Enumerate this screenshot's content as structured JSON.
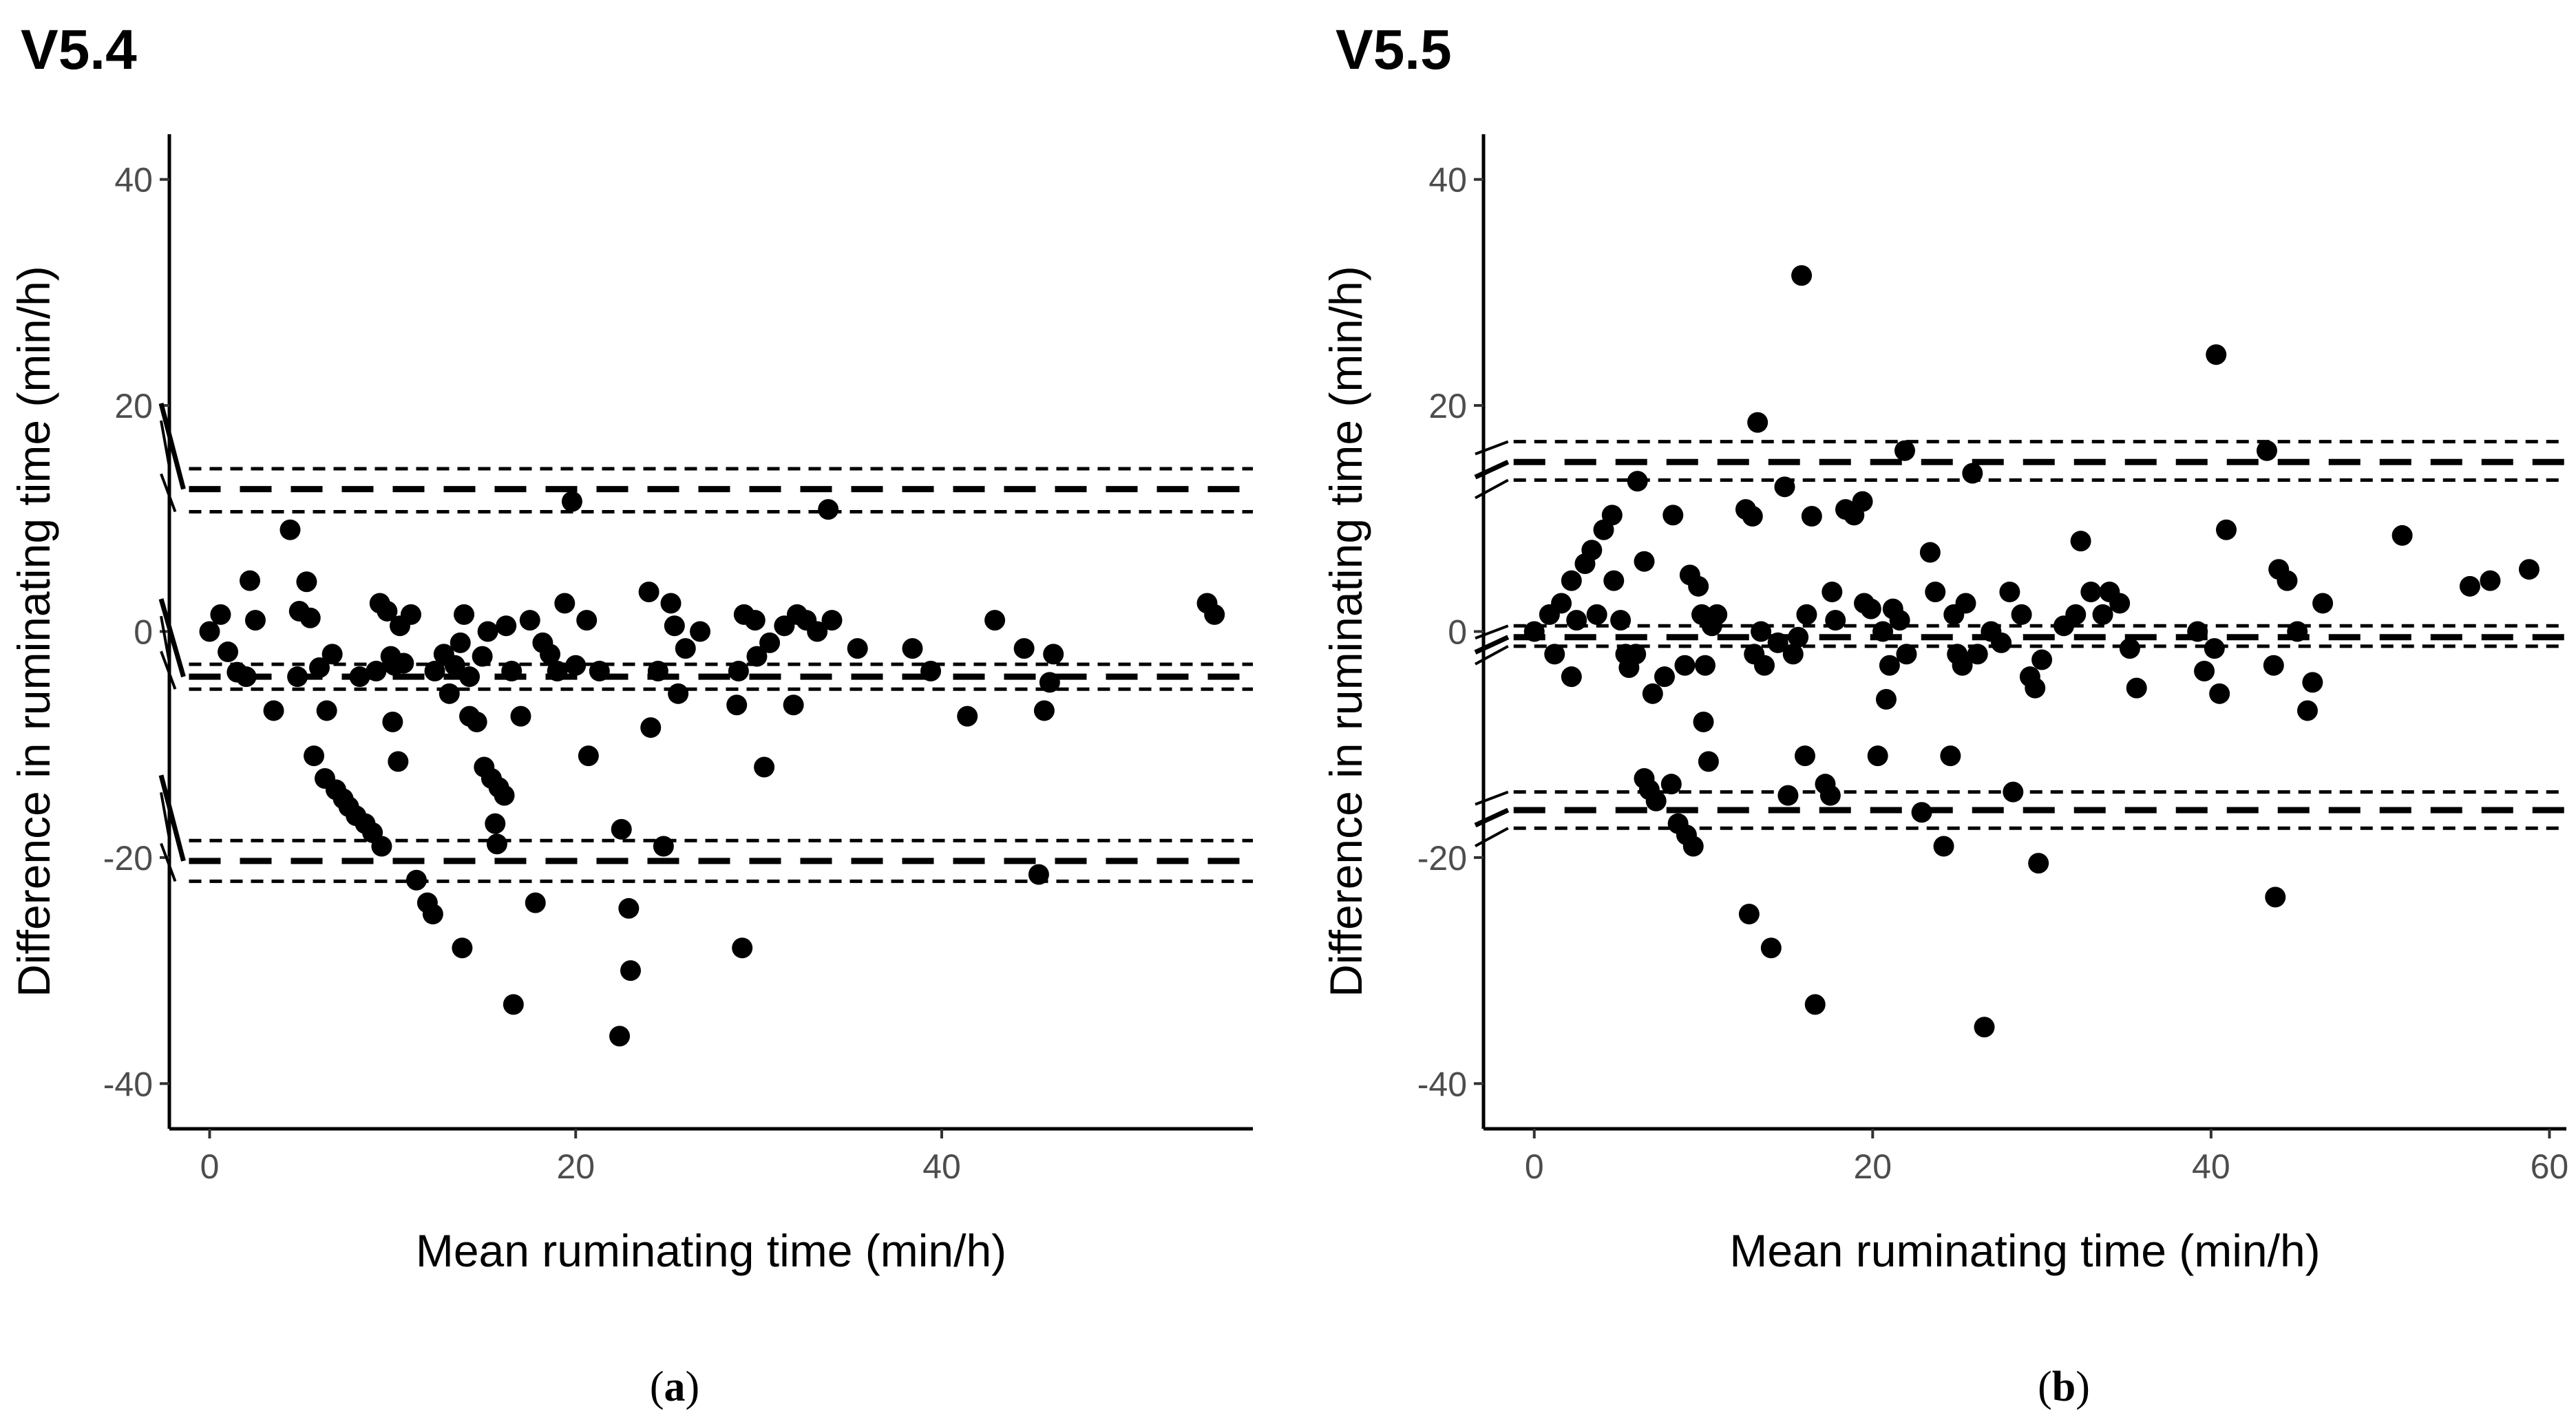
{
  "figure": {
    "panels": [
      "(a)",
      "(b)"
    ]
  },
  "chart_data": [
    {
      "type": "scatter",
      "subtype": "bland-altman",
      "title": "V5.4",
      "caption_prefix": "(",
      "caption_letter": "a",
      "caption_suffix": ")",
      "xlabel": "Mean ruminating time (min/h)",
      "ylabel": "Difference in ruminating time (min/h)",
      "xlim": [
        -2.2,
        57
      ],
      "ylim": [
        -44,
        44
      ],
      "xticks": [
        0,
        20,
        40
      ],
      "yticks": [
        40,
        20,
        0,
        -20,
        -40
      ],
      "grid": false,
      "legend": "none",
      "point_color": "#000000",
      "bias_line": {
        "value": -4.0,
        "ci": [
          -2.9,
          -5.1
        ]
      },
      "upper_loa": {
        "value": 12.6,
        "ci": [
          14.4,
          10.6
        ]
      },
      "lower_loa": {
        "value": -20.3,
        "ci": [
          -18.5,
          -22.1
        ]
      },
      "points": [
        [
          0,
          0
        ],
        [
          0.6,
          1.5
        ],
        [
          1.0,
          -1.8
        ],
        [
          1.5,
          -3.6
        ],
        [
          2.0,
          -4.0
        ],
        [
          2.2,
          4.5
        ],
        [
          2.5,
          1.0
        ],
        [
          3.5,
          -7.0
        ],
        [
          4.4,
          9.0
        ],
        [
          4.8,
          -4.0
        ],
        [
          4.9,
          1.8
        ],
        [
          5.3,
          4.4
        ],
        [
          5.5,
          1.2
        ],
        [
          5.7,
          -11.0
        ],
        [
          6.0,
          -3.2
        ],
        [
          6.3,
          -13.0
        ],
        [
          6.4,
          -7.0
        ],
        [
          6.7,
          -2.0
        ],
        [
          6.9,
          -14.0
        ],
        [
          7.3,
          -14.8
        ],
        [
          7.6,
          -15.5
        ],
        [
          8.0,
          -16.3
        ],
        [
          8.2,
          -4.0
        ],
        [
          8.5,
          -17.0
        ],
        [
          8.9,
          -17.8
        ],
        [
          9.1,
          -3.5
        ],
        [
          9.3,
          2.5
        ],
        [
          9.4,
          -19.0
        ],
        [
          9.7,
          1.8
        ],
        [
          9.9,
          -2.2
        ],
        [
          10.0,
          -8.0
        ],
        [
          10.1,
          -3.0
        ],
        [
          10.3,
          -11.5
        ],
        [
          10.4,
          0.5
        ],
        [
          10.6,
          -2.8
        ],
        [
          11.0,
          1.5
        ],
        [
          11.3,
          -22.0
        ],
        [
          11.9,
          -24.0
        ],
        [
          12.2,
          -25.0
        ],
        [
          12.3,
          -3.5
        ],
        [
          12.8,
          -2.0
        ],
        [
          13.1,
          -5.5
        ],
        [
          13.4,
          -3.0
        ],
        [
          13.7,
          -1.0
        ],
        [
          13.8,
          -28.0
        ],
        [
          13.9,
          1.5
        ],
        [
          14.2,
          -4.0
        ],
        [
          14.2,
          -7.5
        ],
        [
          14.6,
          -8.0
        ],
        [
          14.9,
          -2.2
        ],
        [
          15.0,
          -12.0
        ],
        [
          15.2,
          0.0
        ],
        [
          15.4,
          -13.0
        ],
        [
          15.6,
          -17.0
        ],
        [
          15.7,
          -18.8
        ],
        [
          15.8,
          -13.8
        ],
        [
          16.1,
          -14.5
        ],
        [
          16.2,
          0.5
        ],
        [
          16.5,
          -3.5
        ],
        [
          16.6,
          -33.0
        ],
        [
          17.0,
          -7.5
        ],
        [
          17.5,
          1.0
        ],
        [
          17.8,
          -24.0
        ],
        [
          18.2,
          -1.0
        ],
        [
          18.6,
          -2.0
        ],
        [
          19.0,
          -3.5
        ],
        [
          19.4,
          2.5
        ],
        [
          19.8,
          11.5
        ],
        [
          20.0,
          -3.0
        ],
        [
          20.6,
          1.0
        ],
        [
          20.7,
          -11.0
        ],
        [
          21.3,
          -3.5
        ],
        [
          22.4,
          -35.8
        ],
        [
          22.5,
          -17.5
        ],
        [
          22.9,
          -24.5
        ],
        [
          23.0,
          -30.0
        ],
        [
          24.0,
          3.5
        ],
        [
          24.1,
          -8.5
        ],
        [
          24.5,
          -3.5
        ],
        [
          24.8,
          -19.0
        ],
        [
          25.2,
          2.5
        ],
        [
          25.4,
          0.5
        ],
        [
          25.6,
          -5.5
        ],
        [
          26.0,
          -1.5
        ],
        [
          26.8,
          0.0
        ],
        [
          28.8,
          -6.5
        ],
        [
          28.9,
          -3.5
        ],
        [
          29.1,
          -28.0
        ],
        [
          29.2,
          1.5
        ],
        [
          29.8,
          1.0
        ],
        [
          29.9,
          -2.2
        ],
        [
          30.3,
          -12.0
        ],
        [
          30.6,
          -1.0
        ],
        [
          31.4,
          0.5
        ],
        [
          31.9,
          -6.5
        ],
        [
          32.1,
          1.5
        ],
        [
          32.6,
          1.0
        ],
        [
          33.2,
          0.0
        ],
        [
          33.8,
          10.8
        ],
        [
          34.0,
          1.0
        ],
        [
          35.4,
          -1.5
        ],
        [
          38.4,
          -1.5
        ],
        [
          39.4,
          -3.5
        ],
        [
          41.4,
          -7.5
        ],
        [
          42.9,
          1.0
        ],
        [
          44.5,
          -1.5
        ],
        [
          45.3,
          -21.5
        ],
        [
          45.6,
          -7.0
        ],
        [
          45.9,
          -4.5
        ],
        [
          46.1,
          -2.0
        ],
        [
          54.5,
          2.5
        ],
        [
          54.9,
          1.5
        ]
      ]
    },
    {
      "type": "scatter",
      "subtype": "bland-altman",
      "title": "V5.5",
      "caption_prefix": "(",
      "caption_letter": "b",
      "caption_suffix": ")",
      "xlabel": "Mean ruminating time (min/h)",
      "ylabel": "Difference in ruminating time (min/h)",
      "xlim": [
        -3,
        61
      ],
      "ylim": [
        -44,
        44
      ],
      "xticks": [
        0,
        20,
        40,
        60
      ],
      "yticks": [
        40,
        20,
        0,
        -20,
        -40
      ],
      "grid": false,
      "legend": "none",
      "point_color": "#000000",
      "bias_line": {
        "value": -0.5,
        "ci": [
          0.5,
          -1.3
        ]
      },
      "upper_loa": {
        "value": 15.0,
        "ci": [
          16.8,
          13.4
        ]
      },
      "lower_loa": {
        "value": -15.8,
        "ci": [
          -14.2,
          -17.4
        ]
      },
      "points": [
        [
          0,
          0
        ],
        [
          0.9,
          1.5
        ],
        [
          1.2,
          -2.0
        ],
        [
          1.6,
          2.5
        ],
        [
          2.2,
          -4.0
        ],
        [
          2.2,
          4.5
        ],
        [
          2.5,
          1.0
        ],
        [
          3.0,
          6.0
        ],
        [
          3.4,
          7.2
        ],
        [
          3.7,
          1.5
        ],
        [
          4.1,
          9.0
        ],
        [
          4.6,
          10.3
        ],
        [
          4.7,
          4.5
        ],
        [
          5.1,
          1.0
        ],
        [
          5.4,
          -2.0
        ],
        [
          5.6,
          -3.2
        ],
        [
          6.0,
          -2.0
        ],
        [
          6.1,
          13.3
        ],
        [
          6.5,
          -13.0
        ],
        [
          6.5,
          6.2
        ],
        [
          6.8,
          -14.0
        ],
        [
          7.0,
          -5.5
        ],
        [
          7.2,
          -15.0
        ],
        [
          7.7,
          -4.0
        ],
        [
          8.1,
          -13.5
        ],
        [
          8.2,
          10.3
        ],
        [
          8.5,
          -17.0
        ],
        [
          8.9,
          -3.0
        ],
        [
          9.0,
          -18.0
        ],
        [
          9.2,
          5.0
        ],
        [
          9.4,
          -19.0
        ],
        [
          9.7,
          4.0
        ],
        [
          9.9,
          1.5
        ],
        [
          10.0,
          -8.0
        ],
        [
          10.1,
          -3.0
        ],
        [
          10.3,
          -11.5
        ],
        [
          10.5,
          0.5
        ],
        [
          10.8,
          1.5
        ],
        [
          12.5,
          10.8
        ],
        [
          12.7,
          -25.0
        ],
        [
          12.9,
          10.2
        ],
        [
          13.0,
          -2.0
        ],
        [
          13.2,
          18.5
        ],
        [
          13.4,
          0.0
        ],
        [
          13.6,
          -3.0
        ],
        [
          14.0,
          -28.0
        ],
        [
          14.4,
          -1.0
        ],
        [
          14.8,
          12.8
        ],
        [
          15.0,
          -14.5
        ],
        [
          15.3,
          -2.0
        ],
        [
          15.6,
          -0.5
        ],
        [
          15.8,
          31.5
        ],
        [
          16.0,
          -11.0
        ],
        [
          16.1,
          1.5
        ],
        [
          16.4,
          10.2
        ],
        [
          16.6,
          -33.0
        ],
        [
          17.2,
          -13.5
        ],
        [
          17.5,
          -14.5
        ],
        [
          17.6,
          3.5
        ],
        [
          17.8,
          1.0
        ],
        [
          18.4,
          10.8
        ],
        [
          18.9,
          10.3
        ],
        [
          19.4,
          11.5
        ],
        [
          19.5,
          2.5
        ],
        [
          19.9,
          2.0
        ],
        [
          20.3,
          -11.0
        ],
        [
          20.6,
          0.0
        ],
        [
          20.8,
          -6.0
        ],
        [
          21.0,
          -3.0
        ],
        [
          21.2,
          2.0
        ],
        [
          21.6,
          1.0
        ],
        [
          21.9,
          16.0
        ],
        [
          22.0,
          -2.0
        ],
        [
          22.9,
          -16.0
        ],
        [
          23.4,
          7.0
        ],
        [
          23.7,
          3.5
        ],
        [
          24.2,
          -19.0
        ],
        [
          24.6,
          -11.0
        ],
        [
          24.8,
          1.5
        ],
        [
          25.0,
          -2.0
        ],
        [
          25.3,
          -3.0
        ],
        [
          25.5,
          2.5
        ],
        [
          25.9,
          14.0
        ],
        [
          26.2,
          -2.0
        ],
        [
          26.6,
          -35.0
        ],
        [
          27.0,
          0.0
        ],
        [
          27.6,
          -1.0
        ],
        [
          28.1,
          3.5
        ],
        [
          28.3,
          -14.2
        ],
        [
          28.8,
          1.5
        ],
        [
          29.3,
          -4.0
        ],
        [
          29.6,
          -5.0
        ],
        [
          29.8,
          -20.5
        ],
        [
          30.0,
          -2.5
        ],
        [
          31.3,
          0.5
        ],
        [
          32.0,
          1.5
        ],
        [
          32.3,
          8.0
        ],
        [
          32.9,
          3.5
        ],
        [
          33.6,
          1.5
        ],
        [
          34.0,
          3.5
        ],
        [
          34.6,
          2.5
        ],
        [
          35.2,
          -1.5
        ],
        [
          35.6,
          -5.0
        ],
        [
          39.2,
          0.0
        ],
        [
          39.6,
          -3.5
        ],
        [
          40.2,
          -1.5
        ],
        [
          40.3,
          24.5
        ],
        [
          40.5,
          -5.5
        ],
        [
          40.9,
          9.0
        ],
        [
          43.3,
          16.0
        ],
        [
          43.7,
          -3.0
        ],
        [
          43.8,
          -23.5
        ],
        [
          44.0,
          5.5
        ],
        [
          44.5,
          4.5
        ],
        [
          45.1,
          0.0
        ],
        [
          45.7,
          -7.0
        ],
        [
          46.0,
          -4.5
        ],
        [
          46.6,
          2.5
        ],
        [
          51.3,
          8.5
        ],
        [
          55.3,
          4.0
        ],
        [
          56.5,
          4.5
        ],
        [
          58.8,
          5.5
        ]
      ]
    }
  ]
}
